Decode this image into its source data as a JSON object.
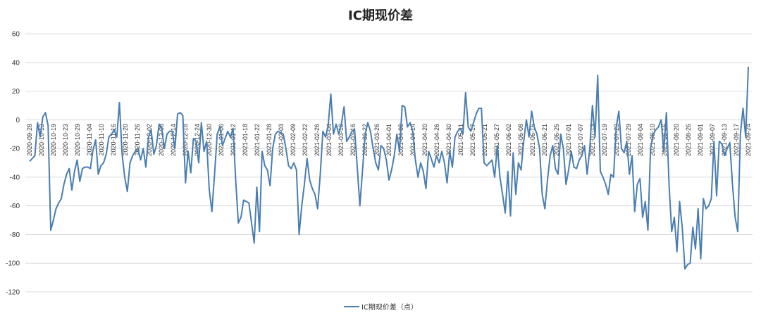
{
  "chart_data": {
    "type": "line",
    "title": "IC期现价差",
    "xlabel": "",
    "ylabel": "",
    "ylim": [
      -120,
      60
    ],
    "yticks": [
      60,
      40,
      20,
      0,
      -20,
      -40,
      -60,
      -80,
      -100,
      -120
    ],
    "grid": true,
    "legend_position": "bottom-center",
    "color": "#4a7eb1",
    "x_tick_labels": [
      "2020-09-28",
      "2020-10-13",
      "2020-10-19",
      "2020-10-23",
      "2020-10-29",
      "2020-11-04",
      "2020-11-10",
      "2020-11-16",
      "2020-11-20",
      "2020-11-26",
      "2020-12-02",
      "2020-12-08",
      "2020-12-14",
      "2020-12-18",
      "2020-12-24",
      "2020-12-30",
      "2021-01-06",
      "2021-01-12",
      "2021-01-18",
      "2021-01-22",
      "2021-01-28",
      "2021-02-03",
      "2021-02-09",
      "2021-02-22",
      "2021-02-26",
      "2021-03-04",
      "2021-03-10",
      "2021-03-16",
      "2021-03-22",
      "2021-03-26",
      "2021-04-01",
      "2021-04-08",
      "2021-04-14",
      "2021-04-20",
      "2021-04-26",
      "2021-04-30",
      "2021-05-11",
      "2021-05-17",
      "2021-05-21",
      "2021-05-27",
      "2021-06-02",
      "2021-06-08",
      "2021-06-15",
      "2021-06-21",
      "2021-06-25",
      "2021-07-01",
      "2021-07-07",
      "2021-07-13",
      "2021-07-19",
      "2021-07-23",
      "2021-07-29",
      "2021-08-04",
      "2021-08-10",
      "2021-08-16",
      "2021-08-20",
      "2021-08-26",
      "2021-09-01",
      "2021-09-07",
      "2021-09-13",
      "2021-09-17",
      "2021-09-24"
    ],
    "series": [
      {
        "name": "IC期现价差（点）",
        "values": [
          -29,
          -27,
          -25,
          -2,
          -12,
          2,
          5,
          -4,
          -77,
          -70,
          -62,
          -58,
          -55,
          -45,
          -38,
          -34,
          -49,
          -36,
          -28,
          -43,
          -34,
          -33,
          -33,
          -34,
          -21,
          -14,
          -38,
          -32,
          -30,
          -24,
          -12,
          -10,
          -7,
          -12,
          12,
          -24,
          -40,
          -50,
          -30,
          -25,
          -22,
          -20,
          -28,
          -20,
          -33,
          -12,
          -7,
          -24,
          -18,
          -3,
          -6,
          -20,
          -10,
          -8,
          -8,
          -20,
          4,
          5,
          3,
          -44,
          -22,
          -37,
          -13,
          -15,
          -30,
          -2,
          -22,
          -15,
          -49,
          -64,
          -38,
          -10,
          -5,
          -18,
          -13,
          -8,
          -12,
          -6,
          -42,
          -72,
          -68,
          -56,
          -57,
          -58,
          -72,
          -86,
          -47,
          -78,
          -22,
          -32,
          -35,
          -46,
          -20,
          -10,
          -8,
          -9,
          -10,
          -20,
          -32,
          -34,
          -30,
          -35,
          -80,
          -60,
          -45,
          -27,
          -42,
          -48,
          -52,
          -62,
          -38,
          -8,
          -12,
          -4,
          18,
          -10,
          -3,
          -10,
          -3,
          9,
          -15,
          -12,
          -8,
          -7,
          -33,
          -60,
          -35,
          -10,
          -2,
          -8,
          -20,
          -30,
          -35,
          -18,
          -20,
          -28,
          -42,
          -35,
          -25,
          -10,
          -22,
          10,
          9,
          -5,
          -2,
          -8,
          -28,
          -40,
          -30,
          -36,
          -48,
          -22,
          -27,
          -33,
          -25,
          -30,
          -22,
          -30,
          -44,
          -22,
          -33,
          -12,
          -8,
          -6,
          -10,
          19,
          -5,
          -8,
          -2,
          4,
          8,
          8,
          -30,
          -32,
          -30,
          -28,
          -40,
          -18,
          -40,
          -52,
          -65,
          -36,
          -67,
          -23,
          -52,
          -30,
          -35,
          -15,
          0,
          -12,
          6,
          -5,
          -10,
          -20,
          -52,
          -62,
          -42,
          -25,
          -18,
          -34,
          -38,
          -10,
          -20,
          -45,
          -35,
          -22,
          -33,
          -34,
          -28,
          -25,
          -18,
          -38,
          -20,
          10,
          -12,
          31,
          -36,
          -40,
          -45,
          -52,
          -38,
          -40,
          -5,
          6,
          -20,
          -23,
          -15,
          -38,
          -25,
          -64,
          -45,
          -41,
          -68,
          -57,
          -77,
          -20,
          -10,
          -7,
          -5,
          0,
          -22,
          5,
          -45,
          -78,
          -68,
          -92,
          -57,
          -75,
          -104,
          -101,
          -100,
          -75,
          -90,
          -62,
          -97,
          -55,
          -62,
          -60,
          -55,
          -15,
          -53,
          -15,
          -17,
          -25,
          -20,
          -16,
          -45,
          -68,
          -78,
          -10,
          8,
          -12,
          37
        ]
      }
    ]
  }
}
